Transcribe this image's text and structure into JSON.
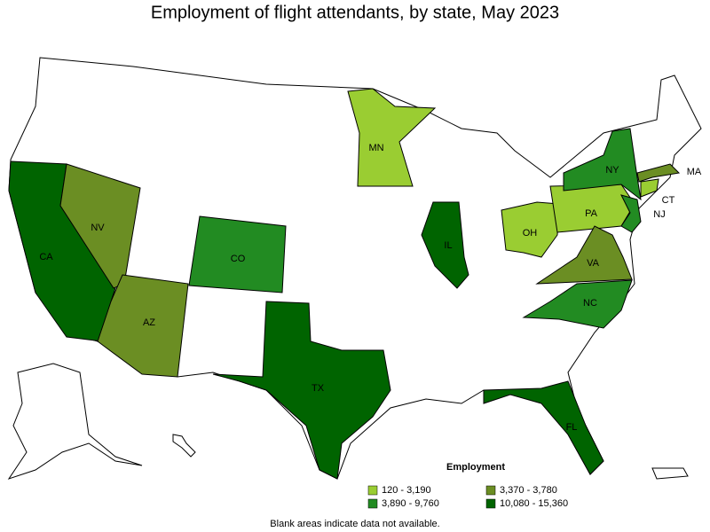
{
  "title": "Employment of flight attendants, by state, May 2023",
  "legend": {
    "title": "Employment",
    "items": [
      {
        "label": "120 - 3,190",
        "color": "#9acd32"
      },
      {
        "label": "3,370 - 3,780",
        "color": "#6b8e23"
      },
      {
        "label": "3,890 - 9,760",
        "color": "#228b22"
      },
      {
        "label": "10,080 - 15,360",
        "color": "#006400"
      }
    ]
  },
  "states": [
    {
      "label": "CA",
      "color": "#006400"
    },
    {
      "label": "NV",
      "color": "#6b8e23"
    },
    {
      "label": "AZ",
      "color": "#6b8e23"
    },
    {
      "label": "CO",
      "color": "#228b22"
    },
    {
      "label": "TX",
      "color": "#006400"
    },
    {
      "label": "MN",
      "color": "#9acd32"
    },
    {
      "label": "IL",
      "color": "#006400"
    },
    {
      "label": "OH",
      "color": "#9acd32"
    },
    {
      "label": "PA",
      "color": "#9acd32"
    },
    {
      "label": "NY",
      "color": "#228b22"
    },
    {
      "label": "NJ",
      "color": "#228b22"
    },
    {
      "label": "VA",
      "color": "#6b8e23"
    },
    {
      "label": "NC",
      "color": "#228b22"
    },
    {
      "label": "MA",
      "color": "#6b8e23"
    },
    {
      "label": "CT",
      "color": "#9acd32"
    },
    {
      "label": "FL",
      "color": "#006400"
    }
  ],
  "note": "Blank areas indicate data not available."
}
